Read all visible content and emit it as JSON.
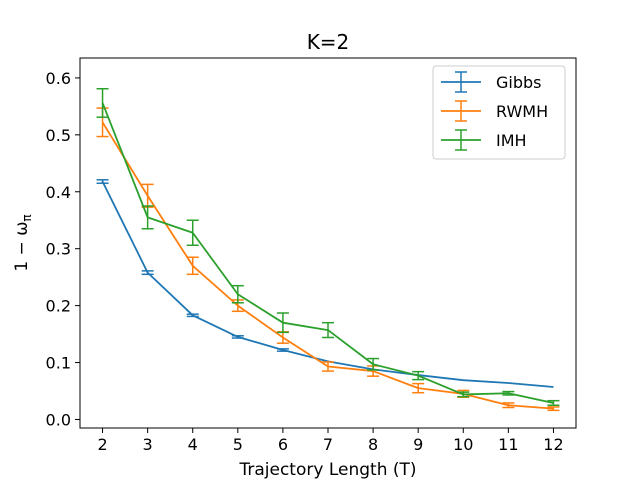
{
  "chart_data": {
    "type": "line",
    "title": "K=2",
    "xlabel": "Trajectory Length (T)",
    "ylabel": "1 − ω",
    "ylabel_sub": "π",
    "x": [
      2,
      3,
      4,
      5,
      6,
      7,
      8,
      9,
      10,
      11,
      12
    ],
    "xticks": [
      "2",
      "3",
      "4",
      "5",
      "6",
      "7",
      "8",
      "9",
      "10",
      "11",
      "12"
    ],
    "yticks": [
      "0.0",
      "0.1",
      "0.2",
      "0.3",
      "0.4",
      "0.5",
      "0.6"
    ],
    "xlim": [
      1.5,
      12.5
    ],
    "ylim": [
      -0.015,
      0.635
    ],
    "legend_position": "top-right",
    "series": [
      {
        "name": "Gibbs",
        "color": "#1f77b4",
        "values": [
          0.418,
          0.258,
          0.183,
          0.145,
          0.122,
          0.102,
          0.088,
          0.078,
          0.069,
          0.064,
          0.057
        ],
        "errors": [
          0.003,
          0.003,
          0.002,
          0.002,
          0.002,
          0.0,
          0.0,
          0.0,
          0.0,
          0.0,
          0.0
        ]
      },
      {
        "name": "RWMH",
        "color": "#ff7f0e",
        "values": [
          0.522,
          0.393,
          0.27,
          0.2,
          0.144,
          0.093,
          0.085,
          0.055,
          0.045,
          0.025,
          0.019
        ],
        "errors": [
          0.025,
          0.02,
          0.015,
          0.01,
          0.01,
          0.008,
          0.009,
          0.008,
          0.006,
          0.004,
          0.003
        ]
      },
      {
        "name": "IMH",
        "color": "#2ca02c",
        "values": [
          0.556,
          0.355,
          0.328,
          0.22,
          0.17,
          0.157,
          0.097,
          0.077,
          0.044,
          0.046,
          0.029
        ],
        "errors": [
          0.025,
          0.02,
          0.022,
          0.015,
          0.017,
          0.013,
          0.01,
          0.007,
          0.004,
          0.003,
          0.004
        ]
      }
    ]
  }
}
